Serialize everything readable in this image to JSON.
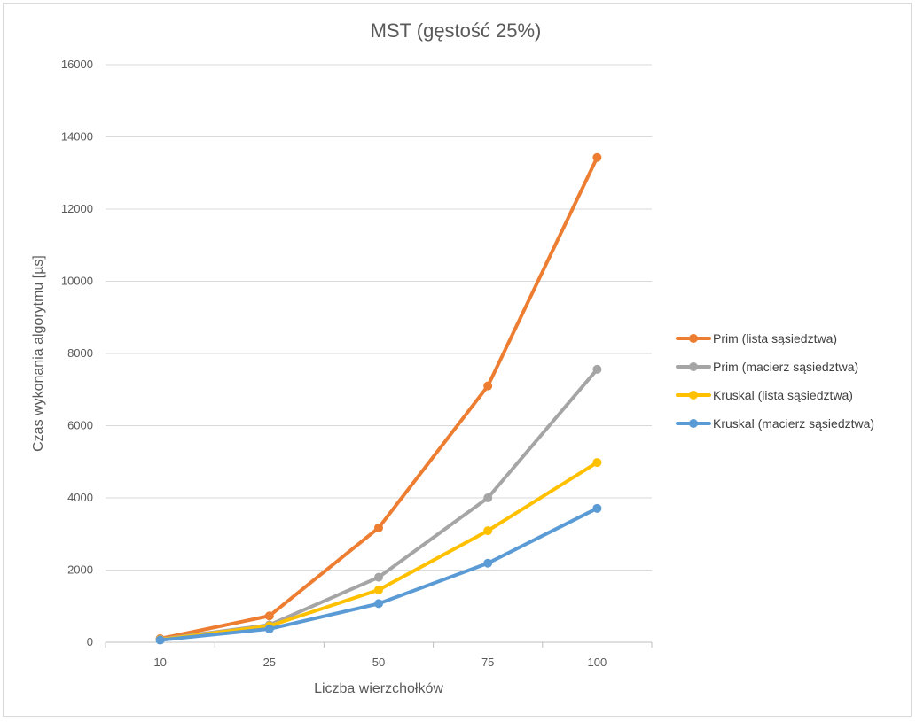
{
  "chart_data": {
    "type": "line",
    "title": "MST (gęstość 25%)",
    "xlabel": "Liczba wierzchołków",
    "ylabel": "Czas wykonania algorytmu [µs]",
    "categories": [
      "10",
      "25",
      "50",
      "75",
      "100"
    ],
    "ylim": [
      0,
      16000
    ],
    "yticks": [
      0,
      2000,
      4000,
      6000,
      8000,
      10000,
      12000,
      14000,
      16000
    ],
    "grid": true,
    "legend_position": "right",
    "series": [
      {
        "name": "Prim (lista sąsiedztwa)",
        "color": "#ED7D31",
        "values": [
          100,
          730,
          3170,
          7100,
          13430
        ]
      },
      {
        "name": "Prim (macierz sąsiedztwa)",
        "color": "#A5A5A5",
        "values": [
          80,
          480,
          1800,
          4000,
          7560
        ]
      },
      {
        "name": "Kruskal (lista sąsiedztwa)",
        "color": "#FFC000",
        "values": [
          70,
          450,
          1450,
          3090,
          4980
        ]
      },
      {
        "name": "Kruskal (macierz sąsiedztwa)",
        "color": "#5B9BD5",
        "values": [
          60,
          370,
          1070,
          2190,
          3710
        ]
      }
    ]
  }
}
